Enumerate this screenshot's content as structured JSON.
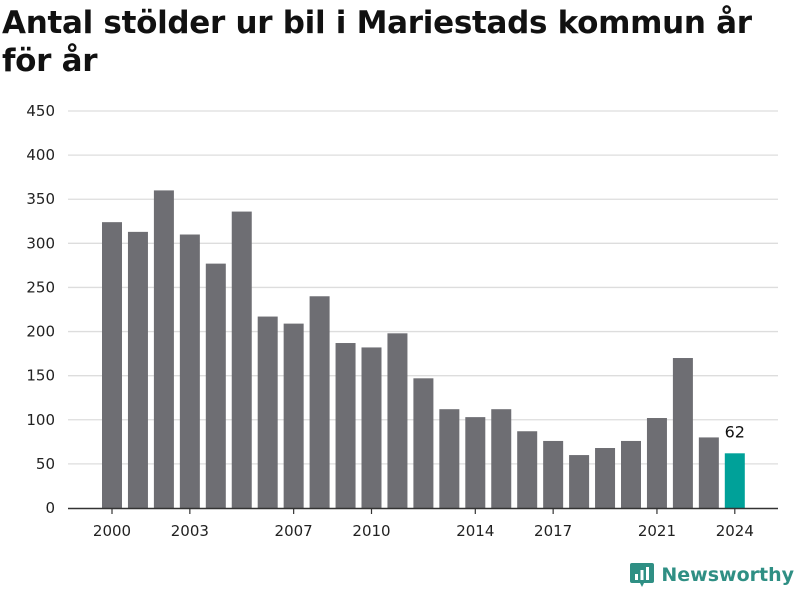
{
  "title": "Antal stölder ur bil i Mariestads kommun år för år",
  "brand": {
    "name": "Newsworthy",
    "icon": "newsworthy-logo-icon",
    "color": "#2f8f84"
  },
  "chart_data": {
    "type": "bar",
    "categories": [
      "2000",
      "2001",
      "2002",
      "2003",
      "2004",
      "2005",
      "2006",
      "2007",
      "2008",
      "2009",
      "2010",
      "2011",
      "2012",
      "2013",
      "2014",
      "2015",
      "2016",
      "2017",
      "2018",
      "2019",
      "2020",
      "2021",
      "2022",
      "2023",
      "2024"
    ],
    "values": [
      324,
      313,
      360,
      310,
      277,
      336,
      217,
      209,
      240,
      187,
      182,
      198,
      147,
      112,
      103,
      112,
      87,
      76,
      60,
      68,
      76,
      102,
      170,
      80,
      62
    ],
    "x_tick_labels": [
      "2000",
      "2003",
      "2007",
      "2010",
      "2014",
      "2017",
      "2021",
      "2024"
    ],
    "y_ticks": [
      0,
      50,
      100,
      150,
      200,
      250,
      300,
      350,
      400,
      450
    ],
    "ylim": [
      0,
      450
    ],
    "grid": true,
    "legend": "none",
    "data_labels": [
      {
        "category": "2024",
        "text": "62"
      }
    ],
    "colors": {
      "bar": "#6e6e73",
      "highlight": "#00a199",
      "grid": "#dddddd",
      "axis": "#333333"
    },
    "highlight_category": "2024"
  }
}
